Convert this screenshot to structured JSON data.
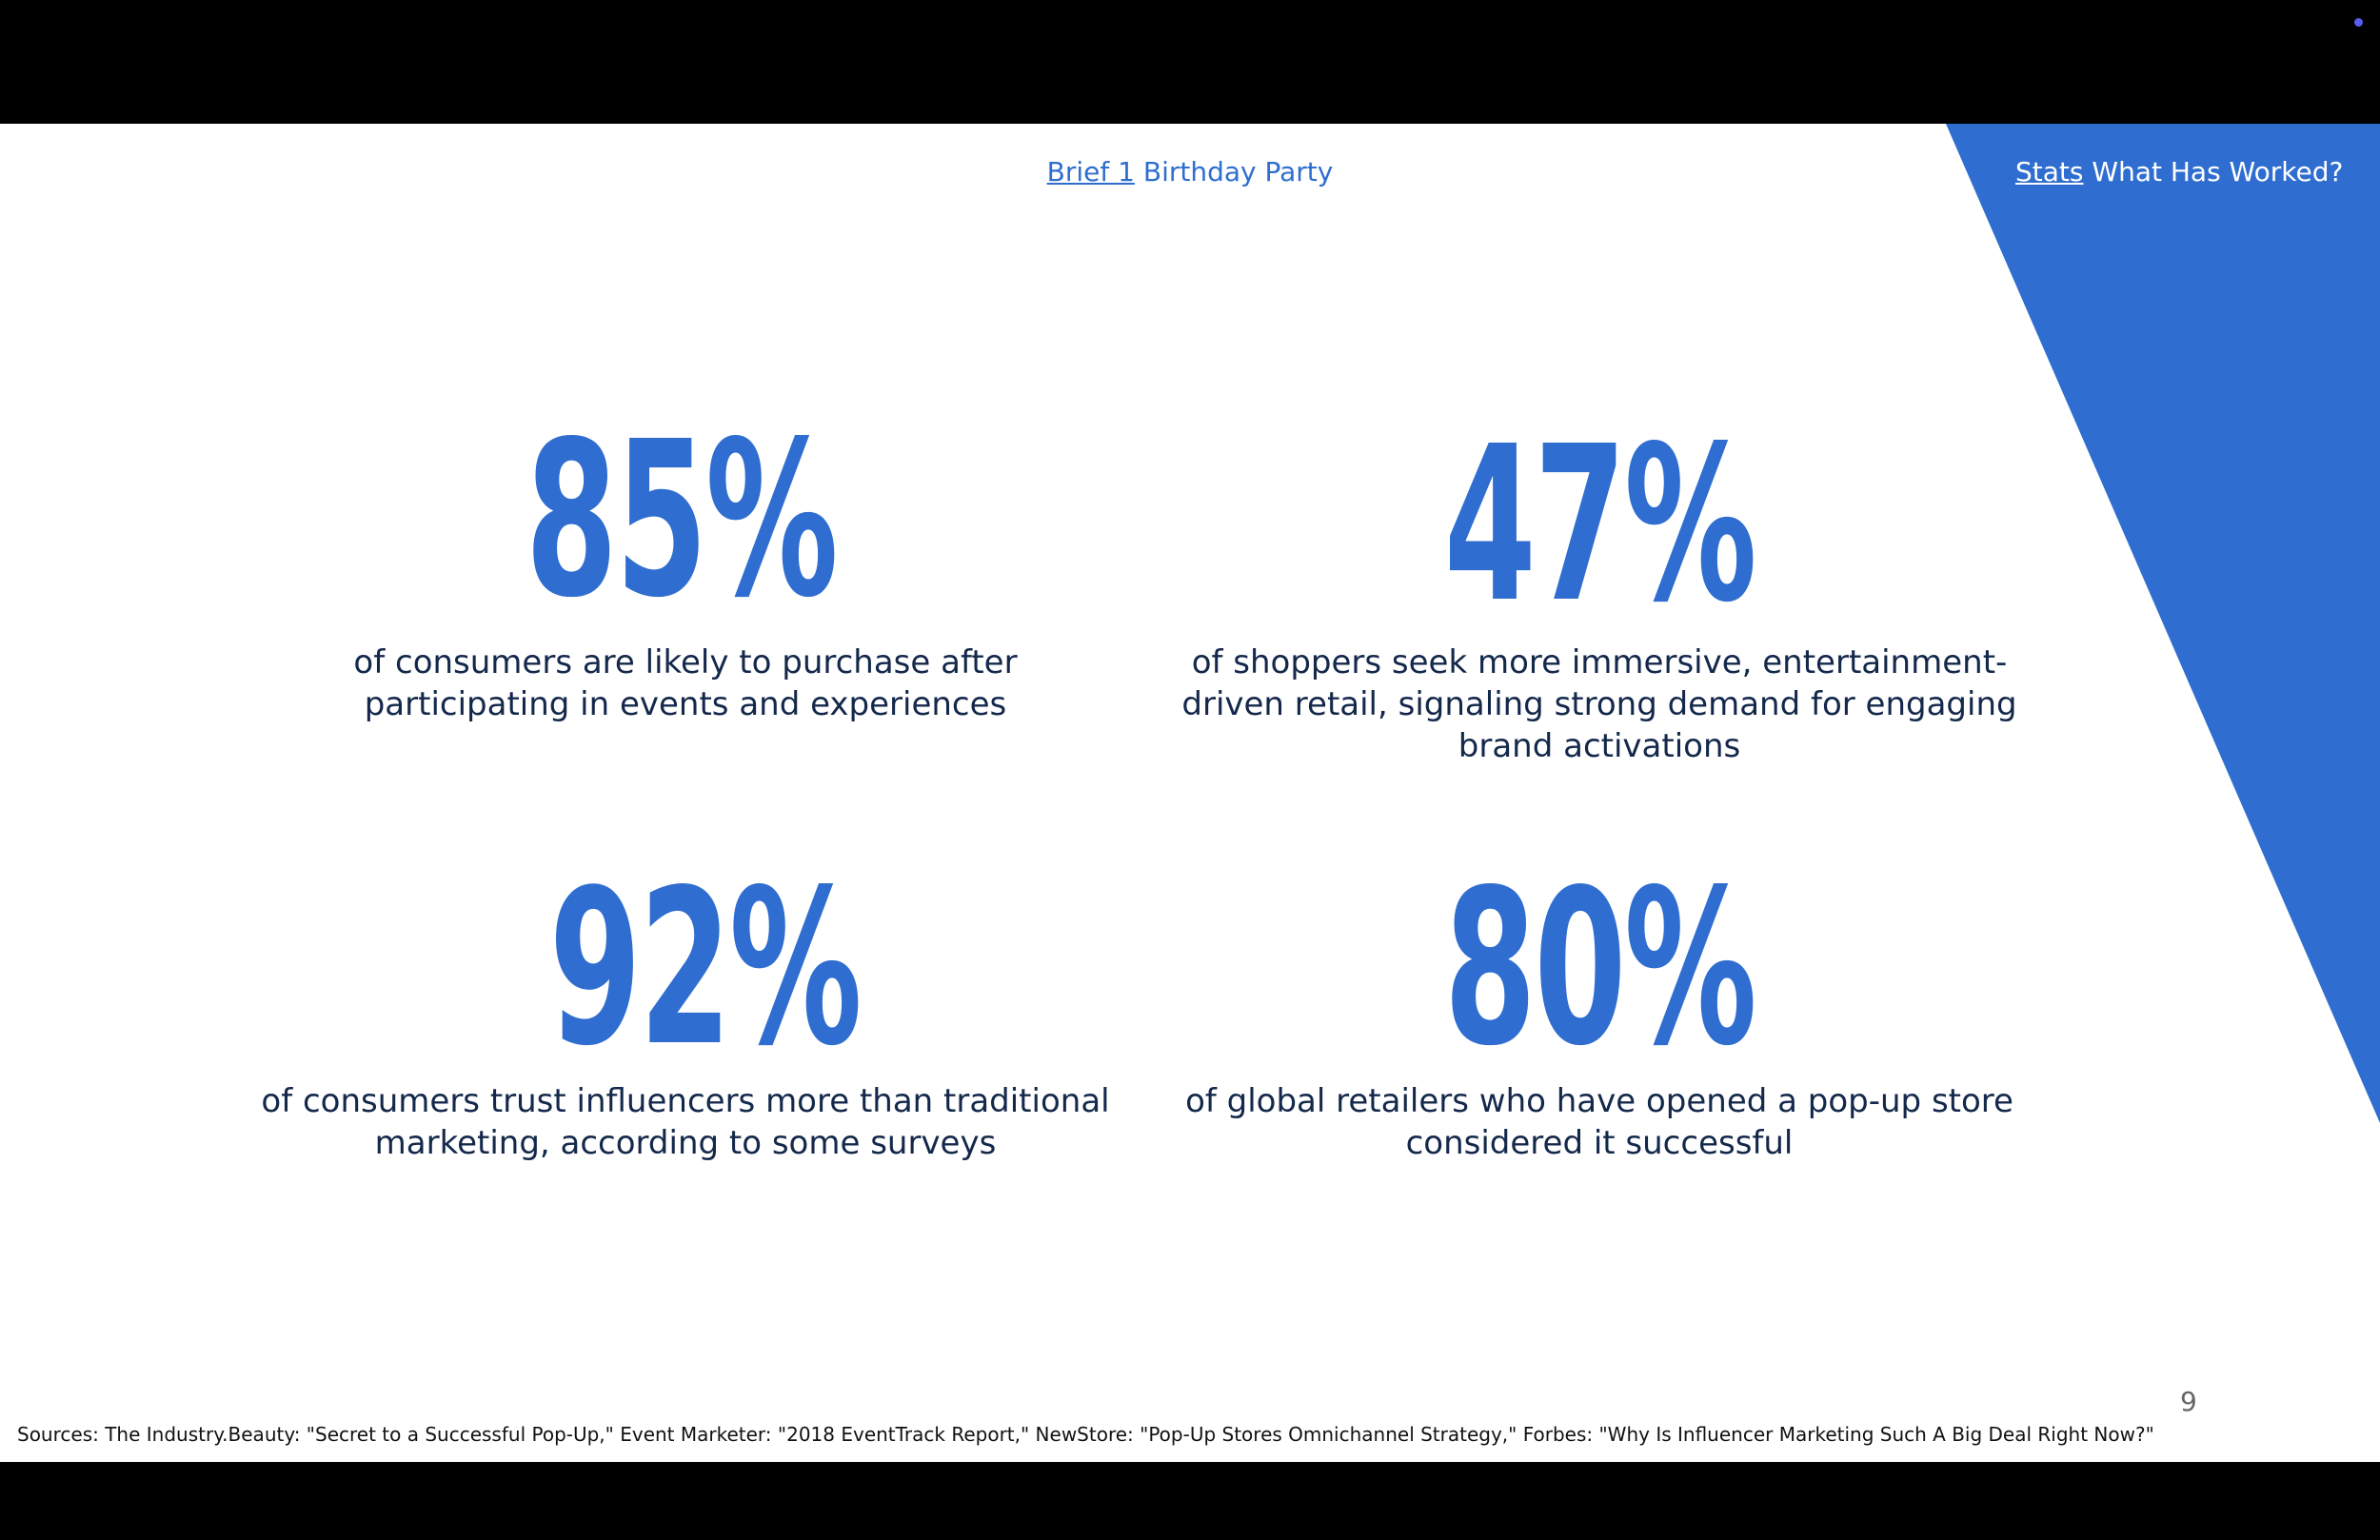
{
  "nav": {
    "brief_link": "Brief 1",
    "brief_title": "Birthday Party",
    "stats_link": "Stats",
    "stats_title": "What Has Worked?"
  },
  "stats": [
    {
      "value": "85%",
      "description": "of consumers are likely to purchase after participating in events and experiences"
    },
    {
      "value": "47%",
      "description": "of shoppers seek more immersive, entertainment-driven retail, signaling strong demand for engaging brand activations"
    },
    {
      "value": "92%",
      "description": "of consumers trust influencers more than traditional marketing, according to some surveys"
    },
    {
      "value": "80%",
      "description": "of global retailers who have opened a pop-up store considered it successful"
    }
  ],
  "sources": "Sources: The Industry.Beauty: \"Secret to a Successful Pop-Up,\" Event Marketer: \"2018 EventTrack Report,\" NewStore: \"Pop-Up Stores Omnichannel Strategy,\" Forbes: \"Why Is Influencer Marketing Such A Big Deal Right Now?\"",
  "page_number": "9",
  "colors": {
    "accent": "#2f6ed0",
    "text_dark": "#14284b",
    "letterbox": "#000000"
  }
}
